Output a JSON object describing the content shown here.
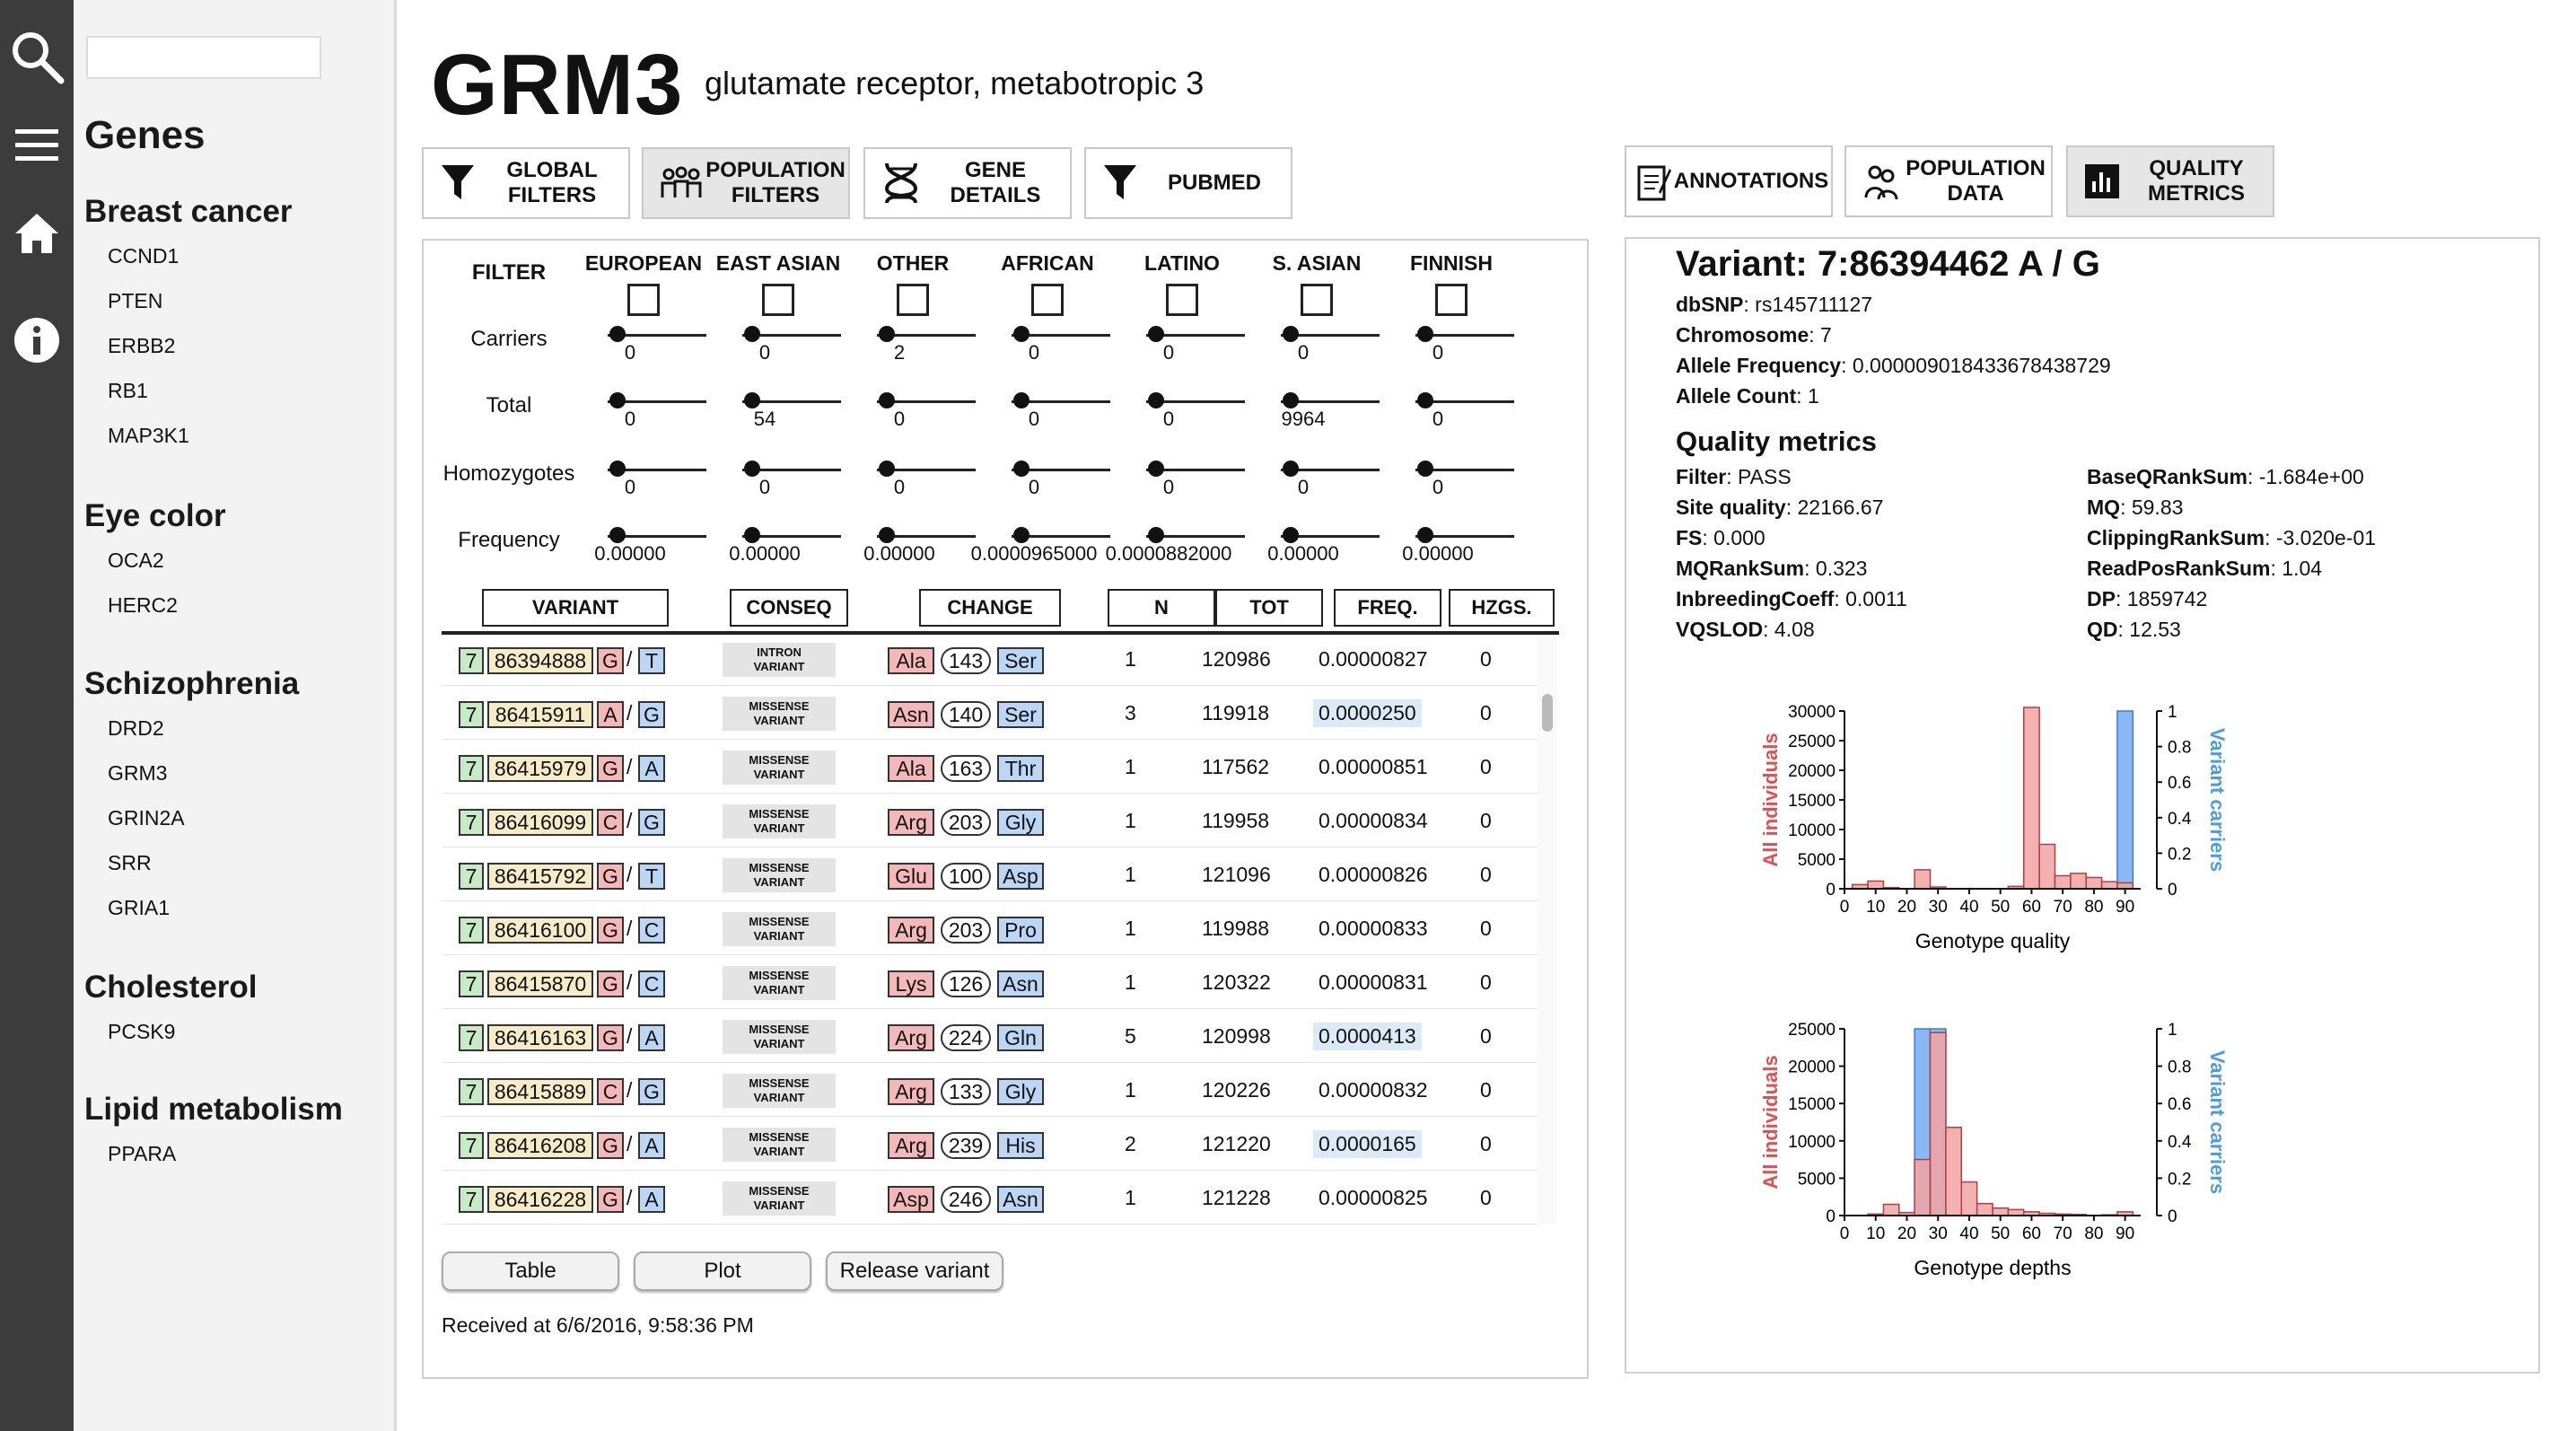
{
  "rail": {
    "icons": [
      "search-icon",
      "menu-icon",
      "home-icon",
      "info-icon"
    ]
  },
  "sidebar": {
    "search_placeholder": "",
    "title": "Genes",
    "groups": [
      {
        "label": "Breast cancer",
        "genes": [
          "CCND1",
          "PTEN",
          "ERBB2",
          "RB1",
          "MAP3K1"
        ]
      },
      {
        "label": "Eye color",
        "genes": [
          "OCA2",
          "HERC2"
        ]
      },
      {
        "label": "Schizophrenia",
        "genes": [
          "DRD2",
          "GRM3",
          "GRIN2A",
          "SRR",
          "GRIA1"
        ]
      },
      {
        "label": "Cholesterol",
        "genes": [
          "PCSK9"
        ]
      },
      {
        "label": "Lipid metabolism",
        "genes": [
          "PPARA"
        ]
      }
    ]
  },
  "header": {
    "gene": "GRM3",
    "description": "glutamate receptor, metabotropic 3"
  },
  "left_tabs": [
    {
      "label": "GLOBAL\nFILTERS",
      "icon": "funnel-icon"
    },
    {
      "label": "POPULATION\nFILTERS",
      "icon": "people-icon"
    },
    {
      "label": "GENE\nDETAILS",
      "icon": "dna-icon"
    },
    {
      "label": "PUBMED",
      "icon": "funnel-icon"
    }
  ],
  "right_tabs": [
    {
      "label": "ANNOTATIONS",
      "icon": "notes-icon"
    },
    {
      "label": "POPULATION\nDATA",
      "icon": "population-icon"
    },
    {
      "label": "QUALITY\nMETRICS",
      "icon": "bar-chart-icon"
    }
  ],
  "filters": {
    "filter_label": "FILTER",
    "populations": [
      "EUROPEAN",
      "EAST ASIAN",
      "OTHER",
      "AFRICAN",
      "LATINO",
      "S. ASIAN",
      "FINNISH"
    ],
    "rows": [
      {
        "label": "Carriers",
        "values": [
          "0",
          "0",
          "2",
          "0",
          "0",
          "0",
          "0"
        ]
      },
      {
        "label": "Total",
        "values": [
          "0",
          "54",
          "0",
          "0",
          "0",
          "9964",
          "0"
        ]
      },
      {
        "label": "Homozygotes",
        "values": [
          "0",
          "0",
          "0",
          "0",
          "0",
          "0",
          "0"
        ]
      },
      {
        "label": "Frequency",
        "values": [
          "0.00000",
          "0.00000",
          "0.00000",
          "0.0000965000",
          "0.0000882000",
          "0.00000",
          "0.00000"
        ]
      }
    ]
  },
  "table": {
    "headers": [
      "VARIANT",
      "CONSEQ",
      "CHANGE",
      "N",
      "TOT",
      "FREQ.",
      "HZGS."
    ],
    "rows": [
      {
        "chr": "7",
        "pos": "86394888",
        "ref": "G",
        "alt": "T",
        "conseq": "INTRON\nVARIANT",
        "aa1": "Ala",
        "aapos": "143",
        "aa2": "Ser",
        "n": "1",
        "tot": "120986",
        "freq": "0.00000827",
        "hz": "0"
      },
      {
        "chr": "7",
        "pos": "86415911",
        "ref": "A",
        "alt": "G",
        "conseq": "MISSENSE\nVARIANT",
        "aa1": "Asn",
        "aapos": "140",
        "aa2": "Ser",
        "n": "3",
        "tot": "119918",
        "freq": "0.0000250",
        "hz": "0"
      },
      {
        "chr": "7",
        "pos": "86415979",
        "ref": "G",
        "alt": "A",
        "conseq": "MISSENSE\nVARIANT",
        "aa1": "Ala",
        "aapos": "163",
        "aa2": "Thr",
        "n": "1",
        "tot": "117562",
        "freq": "0.00000851",
        "hz": "0"
      },
      {
        "chr": "7",
        "pos": "86416099",
        "ref": "C",
        "alt": "G",
        "conseq": "MISSENSE\nVARIANT",
        "aa1": "Arg",
        "aapos": "203",
        "aa2": "Gly",
        "n": "1",
        "tot": "119958",
        "freq": "0.00000834",
        "hz": "0"
      },
      {
        "chr": "7",
        "pos": "86415792",
        "ref": "G",
        "alt": "T",
        "conseq": "MISSENSE\nVARIANT",
        "aa1": "Glu",
        "aapos": "100",
        "aa2": "Asp",
        "n": "1",
        "tot": "121096",
        "freq": "0.00000826",
        "hz": "0"
      },
      {
        "chr": "7",
        "pos": "86416100",
        "ref": "G",
        "alt": "C",
        "conseq": "MISSENSE\nVARIANT",
        "aa1": "Arg",
        "aapos": "203",
        "aa2": "Pro",
        "n": "1",
        "tot": "119988",
        "freq": "0.00000833",
        "hz": "0"
      },
      {
        "chr": "7",
        "pos": "86415870",
        "ref": "G",
        "alt": "C",
        "conseq": "MISSENSE\nVARIANT",
        "aa1": "Lys",
        "aapos": "126",
        "aa2": "Asn",
        "n": "1",
        "tot": "120322",
        "freq": "0.00000831",
        "hz": "0"
      },
      {
        "chr": "7",
        "pos": "86416163",
        "ref": "G",
        "alt": "A",
        "conseq": "MISSENSE\nVARIANT",
        "aa1": "Arg",
        "aapos": "224",
        "aa2": "Gln",
        "n": "5",
        "tot": "120998",
        "freq": "0.0000413",
        "hz": "0"
      },
      {
        "chr": "7",
        "pos": "86415889",
        "ref": "C",
        "alt": "G",
        "conseq": "MISSENSE\nVARIANT",
        "aa1": "Arg",
        "aapos": "133",
        "aa2": "Gly",
        "n": "1",
        "tot": "120226",
        "freq": "0.00000832",
        "hz": "0"
      },
      {
        "chr": "7",
        "pos": "86416208",
        "ref": "G",
        "alt": "A",
        "conseq": "MISSENSE\nVARIANT",
        "aa1": "Arg",
        "aapos": "239",
        "aa2": "His",
        "n": "2",
        "tot": "121220",
        "freq": "0.0000165",
        "hz": "0"
      },
      {
        "chr": "7",
        "pos": "86416228",
        "ref": "G",
        "alt": "A",
        "conseq": "MISSENSE\nVARIANT",
        "aa1": "Asp",
        "aapos": "246",
        "aa2": "Asn",
        "n": "1",
        "tot": "121228",
        "freq": "0.00000825",
        "hz": "0"
      }
    ]
  },
  "buttons": {
    "table": "Table",
    "plot": "Plot",
    "release": "Release variant"
  },
  "received": "Received at 6/6/2016, 9:58:36 PM",
  "variant": {
    "title": "Variant: 7:86394462 A / G",
    "info": [
      {
        "k": "dbSNP",
        "v": ": rs145711127"
      },
      {
        "k": "Chromosome",
        "v": ": 7"
      },
      {
        "k": "Allele Frequency",
        "v": ": 0.000009018433678438729"
      },
      {
        "k": "Allele Count",
        "v": ": 1"
      }
    ],
    "qm_title": "Quality metrics",
    "qm_left": [
      {
        "k": "Filter",
        "v": ": PASS"
      },
      {
        "k": "Site quality",
        "v": ": 22166.67"
      },
      {
        "k": "FS",
        "v": ": 0.000"
      },
      {
        "k": "MQRankSum",
        "v": ": 0.323"
      },
      {
        "k": "InbreedingCoeff",
        "v": ": 0.0011"
      },
      {
        "k": "VQSLOD",
        "v": ": 4.08"
      }
    ],
    "qm_right": [
      {
        "k": "BaseQRankSum",
        "v": ": -1.684e+00"
      },
      {
        "k": "MQ",
        "v": ": 59.83"
      },
      {
        "k": "ClippingRankSum",
        "v": ": -3.020e-01"
      },
      {
        "k": "ReadPosRankSum",
        "v": ": 1.04"
      },
      {
        "k": "DP",
        "v": ": 1859742"
      },
      {
        "k": "QD",
        "v": ": 12.53"
      }
    ]
  },
  "colors": {
    "accent_red": "#e05050",
    "accent_blue": "#4a9de0",
    "bar_red": "#f2a3a3",
    "bar_blue": "#8ab8f5",
    "chr_green": "#c7ebc7",
    "ref_red": "#f5b8b8",
    "alt_blue": "#bcd6f5",
    "pos_tan": "#f7ecc8",
    "aa2_blue": "#bcd6f5",
    "freq_hl": "#dbeaf7"
  },
  "chart_data": [
    {
      "type": "bar",
      "title": "",
      "xlabel": "Genotype quality",
      "ylabel": "All individuals",
      "y2label": "Variant carriers",
      "xlim": [
        0,
        95
      ],
      "ylim": [
        0,
        30000
      ],
      "y2lim": [
        0,
        1
      ],
      "xticks": [
        "0",
        "10",
        "20",
        "30",
        "40",
        "50",
        "60",
        "70",
        "80",
        "90"
      ],
      "yticks": [
        "0",
        "5000",
        "10000",
        "15000",
        "20000",
        "25000",
        "30000"
      ],
      "y2ticks": [
        "0",
        "0.2",
        "0.4",
        "0.6",
        "0.8",
        "1"
      ],
      "series": [
        {
          "name": "All individuals",
          "bins": [
            [
              5,
              700
            ],
            [
              10,
              1300
            ],
            [
              15,
              200
            ],
            [
              25,
              3200
            ],
            [
              30,
              300
            ],
            [
              55,
              400
            ],
            [
              60,
              31000
            ],
            [
              65,
              7500
            ],
            [
              70,
              2200
            ],
            [
              75,
              2600
            ],
            [
              80,
              1900
            ],
            [
              85,
              1200
            ],
            [
              90,
              1000
            ]
          ]
        },
        {
          "name": "Variant carriers",
          "bins": [
            [
              90,
              1.0
            ]
          ]
        }
      ]
    },
    {
      "type": "bar",
      "title": "",
      "xlabel": "Genotype depths",
      "ylabel": "All individuals",
      "y2label": "Variant carriers",
      "xlim": [
        0,
        95
      ],
      "ylim": [
        0,
        25000
      ],
      "y2lim": [
        0,
        1
      ],
      "xticks": [
        "0",
        "10",
        "20",
        "30",
        "40",
        "50",
        "60",
        "70",
        "80",
        "90"
      ],
      "yticks": [
        "0",
        "5000",
        "10000",
        "15000",
        "20000",
        "25000"
      ],
      "y2ticks": [
        "0",
        "0.2",
        "0.4",
        "0.6",
        "0.8",
        "1"
      ],
      "series": [
        {
          "name": "All individuals",
          "bins": [
            [
              10,
              200
            ],
            [
              15,
              1500
            ],
            [
              20,
              400
            ],
            [
              25,
              7500
            ],
            [
              30,
              24500
            ],
            [
              35,
              11800
            ],
            [
              40,
              4500
            ],
            [
              45,
              1600
            ],
            [
              50,
              1000
            ],
            [
              55,
              800
            ],
            [
              60,
              500
            ],
            [
              65,
              300
            ],
            [
              70,
              200
            ],
            [
              75,
              150
            ],
            [
              85,
              100
            ],
            [
              90,
              500
            ]
          ]
        },
        {
          "name": "Variant carriers",
          "bins": [
            [
              25,
              1.0
            ],
            [
              30,
              1.0
            ]
          ]
        }
      ]
    }
  ]
}
